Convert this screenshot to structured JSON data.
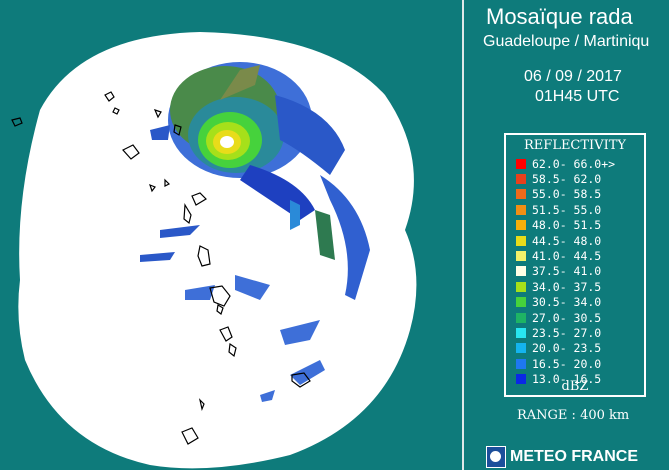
{
  "panel": {
    "title": "Mosaïque rada",
    "subtitle": "Guadeloupe / Martiniqu",
    "date": "06 / 09 / 2017",
    "time": "01H45 UTC",
    "legend_title": "REFLECTIVITY",
    "legend_unit": "dBZ",
    "range": "RANGE : 400 km",
    "logo_name": "METEO FRANCE"
  },
  "legend_rows": [
    {
      "label": "62.0- 66.0+>",
      "color": "#ff0000"
    },
    {
      "label": "58.5- 62.0",
      "color": "#e8401c"
    },
    {
      "label": "55.0- 58.5",
      "color": "#ee6a1a"
    },
    {
      "label": "51.5- 55.0",
      "color": "#f28f14"
    },
    {
      "label": "48.0- 51.5",
      "color": "#f5b00c"
    },
    {
      "label": "44.5- 48.0",
      "color": "#e8dc1a"
    },
    {
      "label": "41.0- 44.5",
      "color": "#f2f26a"
    },
    {
      "label": "37.5- 41.0",
      "color": "#ffffe6"
    },
    {
      "label": "34.0- 37.5",
      "color": "#a6e01a"
    },
    {
      "label": "30.5- 34.0",
      "color": "#46d23c"
    },
    {
      "label": "27.0- 30.5",
      "color": "#1eb464"
    },
    {
      "label": "23.5- 27.0",
      "color": "#28e6f0"
    },
    {
      "label": "20.0- 23.5",
      "color": "#14b4ee"
    },
    {
      "label": "16.5- 20.0",
      "color": "#1e78f0"
    },
    {
      "label": "13.0- 16.5",
      "color": "#0a28e6"
    }
  ],
  "colors": {
    "background": "#0e7b7b",
    "coverage": "#ffffff",
    "border": "#dfe9e9"
  }
}
